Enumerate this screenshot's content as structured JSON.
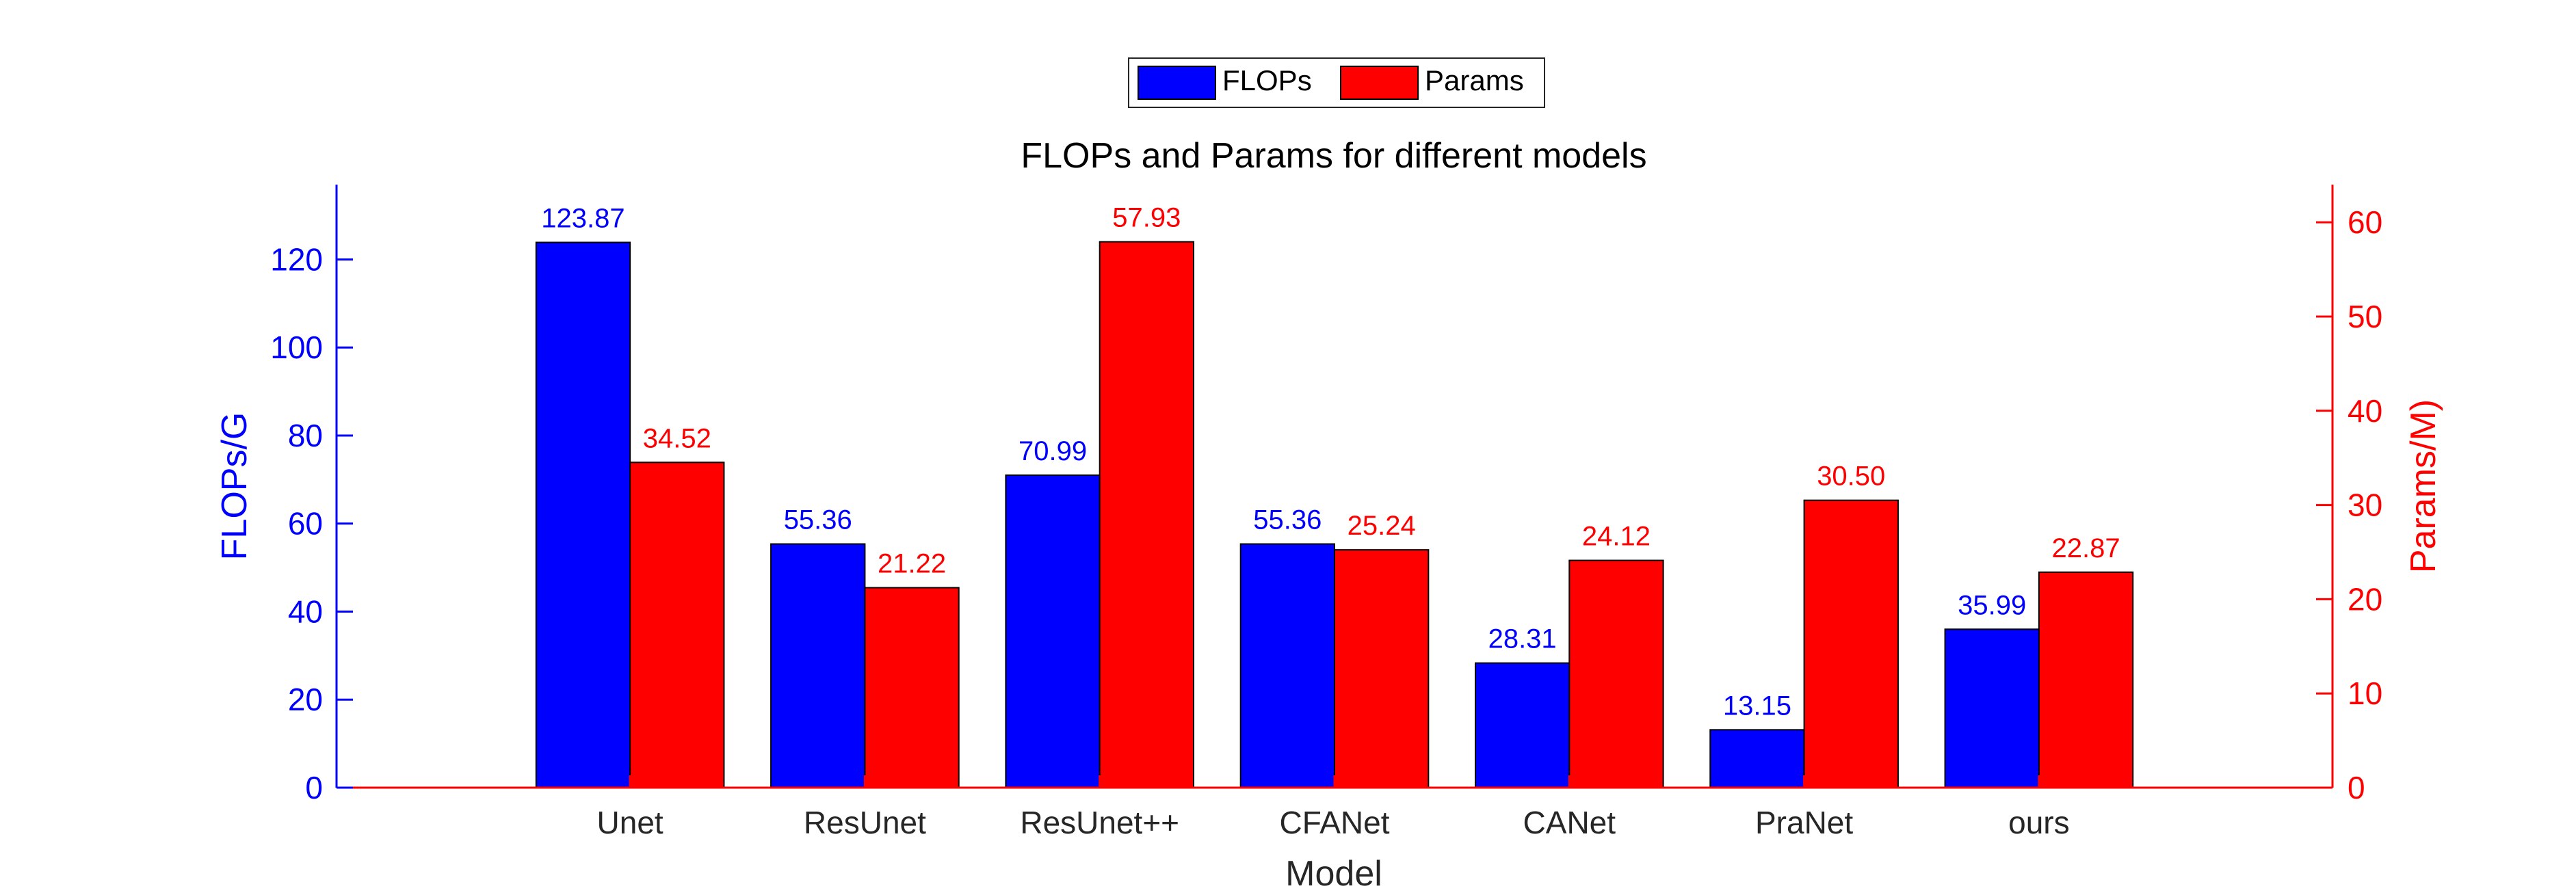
{
  "chart_data": {
    "type": "bar",
    "title": "FLOPs and Params for different models",
    "xlabel": "Model",
    "ylabel_left": "FLOPs/G",
    "ylabel_right": "Params/M)",
    "categories": [
      "Unet",
      "ResUnet",
      "ResUnet++",
      "CFANet",
      "CANet",
      "PraNet",
      "ours"
    ],
    "series": [
      {
        "name": "FLOPs",
        "axis": "left",
        "color": "#0000ff",
        "values": [
          123.87,
          55.36,
          70.99,
          55.36,
          28.31,
          13.15,
          35.99
        ],
        "labels": [
          "123.87",
          "55.36",
          "70.99",
          "55.36",
          "28.31",
          "13.15",
          "35.99"
        ]
      },
      {
        "name": "Params",
        "axis": "right",
        "color": "#ff0000",
        "values": [
          34.52,
          21.22,
          57.93,
          25.24,
          24.12,
          30.5,
          22.87
        ],
        "labels": [
          "34.52",
          "21.22",
          "57.93",
          "25.24",
          "24.12",
          "30.50",
          "22.87"
        ]
      }
    ],
    "ylim_left": [
      0,
      137
    ],
    "ylim_right": [
      0,
      64
    ],
    "yticks_left": [
      0,
      20,
      40,
      60,
      80,
      100,
      120
    ],
    "yticks_right": [
      0,
      10,
      20,
      30,
      40,
      50,
      60
    ],
    "xlim": [
      -0.25,
      8.25
    ],
    "legend_position": "top-center",
    "grid": false,
    "left_axis_color": "#0000ff",
    "right_axis_color": "#ff0000"
  }
}
